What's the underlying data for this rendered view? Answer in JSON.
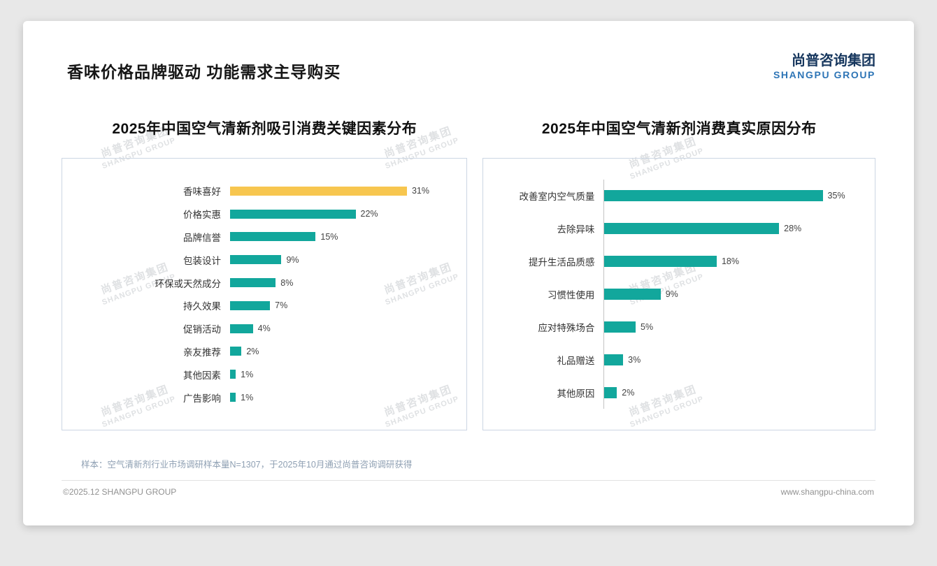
{
  "page": {
    "title": "香味价格品牌驱动 功能需求主导购买",
    "logo": {
      "cn": "尚普咨询集团",
      "en": "SHANGPU GROUP"
    },
    "watermark": {
      "line1": "尚普咨询集团",
      "line2": "SHANGPU GROUP"
    },
    "footnote": "样本：空气清新剂行业市场调研样本量N=1307，于2025年10月通过尚普咨询调研获得",
    "footer": {
      "left": "©2025.12 SHANGPU GROUP",
      "right": "www.shangpu-china.com"
    }
  },
  "colors": {
    "teal": "#12A79C",
    "yellow": "#F7C64F",
    "logo_navy": "#17375E",
    "logo_blue": "#2E75B6"
  },
  "chart_data": [
    {
      "type": "bar",
      "orientation": "horizontal",
      "title": "2025年中国空气清新剂吸引消费关键因素分布",
      "categories": [
        "香味喜好",
        "价格实惠",
        "品牌信誉",
        "包装设计",
        "环保或天然成分",
        "持久效果",
        "促销活动",
        "亲友推荐",
        "其他因素",
        "广告影响"
      ],
      "values": [
        31,
        22,
        15,
        9,
        8,
        7,
        4,
        2,
        1,
        1
      ],
      "value_labels": [
        "31%",
        "22%",
        "15%",
        "9%",
        "8%",
        "7%",
        "4%",
        "2%",
        "1%",
        "1%"
      ],
      "highlight_index": 0,
      "bar_color": "#12A79C",
      "highlight_color": "#F7C64F",
      "xlim": [
        0,
        40
      ],
      "grid": false,
      "legend": false
    },
    {
      "type": "bar",
      "orientation": "horizontal",
      "title": "2025年中国空气清新剂消费真实原因分布",
      "categories": [
        "改善室内空气质量",
        "去除异味",
        "提升生活品质感",
        "习惯性使用",
        "应对特殊场合",
        "礼品赠送",
        "其他原因"
      ],
      "values": [
        35,
        28,
        18,
        9,
        5,
        3,
        2
      ],
      "value_labels": [
        "35%",
        "28%",
        "18%",
        "9%",
        "5%",
        "3%",
        "2%"
      ],
      "highlight_index": -1,
      "bar_color": "#12A79C",
      "highlight_color": "#F7C64F",
      "xlim": [
        0,
        42
      ],
      "grid": false,
      "legend": false
    }
  ]
}
